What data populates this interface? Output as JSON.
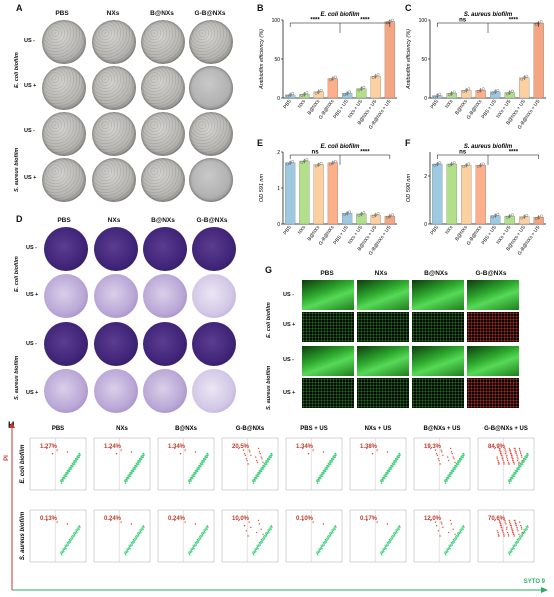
{
  "panels": {
    "A": "A",
    "B": "B",
    "C": "C",
    "D": "D",
    "E": "E",
    "F": "F",
    "G": "G",
    "H": "H"
  },
  "groups4": [
    "PBS",
    "NXs",
    "B@NXs",
    "G-B@NXs"
  ],
  "us_minus": "US -",
  "us_plus": "US +",
  "ecoli": "E. coli biofilm",
  "saureus": "S. aureus biofilm",
  "saureus_biofilm_row": "S. aureus biofilm",
  "chart_data": [
    {
      "type": "bar",
      "title": "E. coli biofilm",
      "ylabel": "Antibiofilm efficiency (%)",
      "categories": [
        "PBS",
        "NXs",
        "B@NXs",
        "G-B@NXs",
        "PBS + US",
        "NXs + US",
        "B@NXs + US",
        "G-B@NXs + US"
      ],
      "values": [
        4,
        5,
        8,
        25,
        6,
        12,
        28,
        98
      ],
      "ylim": [
        0,
        100
      ],
      "yticks": [
        0,
        50,
        100
      ],
      "colors": [
        "#9ecae1",
        "#b2df8a",
        "#fdd0a2",
        "#fdae8a",
        "#9ecae1",
        "#b2df8a",
        "#fdd0a2",
        "#f4a582"
      ],
      "annotations": [
        "****",
        "****"
      ]
    },
    {
      "type": "bar",
      "title": "S. aureus biofilm",
      "ylabel": "Antibiofilm efficiency (%)",
      "categories": [
        "PBS",
        "NXs",
        "B@NXs",
        "G-B@NXs",
        "PBS + US",
        "NXs + US",
        "B@NXs + US",
        "G-B@NXs + US"
      ],
      "values": [
        3,
        6,
        10,
        10,
        8,
        7,
        26,
        96
      ],
      "ylim": [
        0,
        100
      ],
      "yticks": [
        0,
        50,
        100
      ],
      "colors": [
        "#9ecae1",
        "#b2df8a",
        "#fdd0a2",
        "#fdae8a",
        "#9ecae1",
        "#b2df8a",
        "#fdd0a2",
        "#f4a582"
      ],
      "annotations": [
        "ns",
        "****"
      ]
    },
    {
      "type": "bar",
      "title": "E. coli biofilm",
      "ylabel": "OD 591 nm",
      "categories": [
        "PBS",
        "NXs",
        "B@NXs",
        "G-B@NXs",
        "PBS + US",
        "NXs + US",
        "B@NXs + US",
        "G-B@NXs + US"
      ],
      "values": [
        1.7,
        1.75,
        1.65,
        1.7,
        0.3,
        0.28,
        0.25,
        0.22
      ],
      "ylim": [
        0,
        2
      ],
      "yticks": [
        0,
        1,
        2
      ],
      "colors": [
        "#9ecae1",
        "#b2df8a",
        "#fdd0a2",
        "#fdae8a",
        "#9ecae1",
        "#b2df8a",
        "#fdd0a2",
        "#f4a582"
      ],
      "annotations": [
        "ns",
        "****"
      ]
    },
    {
      "type": "bar",
      "title": "S. aureus biofilm",
      "ylabel": "OD 590 nm",
      "categories": [
        "PBS",
        "NXs",
        "B@NXs",
        "G-B@NXs",
        "PBS + US",
        "NXs + US",
        "B@NXs + US",
        "G-B@NXs + US"
      ],
      "values": [
        2.5,
        2.5,
        2.45,
        2.45,
        0.35,
        0.33,
        0.3,
        0.28
      ],
      "ylim": [
        0,
        3
      ],
      "yticks": [
        0,
        2
      ],
      "colors": [
        "#9ecae1",
        "#b2df8a",
        "#fdd0a2",
        "#fdae8a",
        "#9ecae1",
        "#b2df8a",
        "#fdd0a2",
        "#f4a582"
      ],
      "annotations": [
        "ns",
        "****"
      ]
    }
  ],
  "flow": {
    "columns": [
      "PBS",
      "NXs",
      "B@NXs",
      "G-B@NXs",
      "PBS + US",
      "NXs + US",
      "B@NXs + US",
      "G-B@NXs + US"
    ],
    "ecoli_pct": [
      "1.27%",
      "1.24%",
      "1.34%",
      "20.5%",
      "1.34%",
      "1.38%",
      "19.3%",
      "84.9%"
    ],
    "saureus_pct": [
      "0.13%",
      "0.24%",
      "0.24%",
      "10.0%",
      "0.10%",
      "0.17%",
      "12.0%",
      "70.6%"
    ],
    "yaxis": "PI",
    "xaxis": "SYTO 9",
    "row1": "E. coli biofilm",
    "row2": "S. aureus biofilm"
  }
}
